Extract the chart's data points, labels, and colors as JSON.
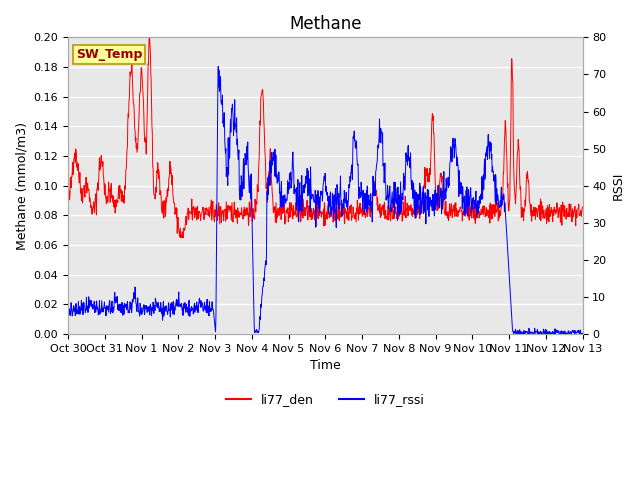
{
  "title": "Methane",
  "ylabel_left": "Methane (mmol/m3)",
  "ylabel_right": "RSSI",
  "xlabel": "Time",
  "ylim_left": [
    0.0,
    0.2
  ],
  "ylim_right": [
    0,
    80
  ],
  "xtick_labels": [
    "Oct 30",
    "Oct 31",
    "Nov 1",
    "Nov 2",
    "Nov 3",
    "Nov 4",
    "Nov 5",
    "Nov 6",
    "Nov 7",
    "Nov 8",
    "Nov 9",
    "Nov 10",
    "Nov 11",
    "Nov 12",
    "Nov 13"
  ],
  "line_red_color": "#ff0000",
  "line_blue_color": "#0000ff",
  "fig_bg_color": "#ffffff",
  "axes_bg_color": "#e8e8e8",
  "annotation_text": "SW_Temp",
  "annotation_fg": "#990000",
  "annotation_bg": "#ffff99",
  "annotation_border": "#b8960c",
  "legend_red_label": "li77_den",
  "legend_blue_label": "li77_rssi",
  "title_fontsize": 12,
  "axis_label_fontsize": 9,
  "tick_fontsize": 8,
  "annotation_fontsize": 9,
  "legend_fontsize": 9,
  "grid_color": "#ffffff",
  "ytick_step_left": 0.02,
  "ytick_step_right": 10,
  "n_days": 14,
  "pts_per_day": 96,
  "line_width": 0.7
}
